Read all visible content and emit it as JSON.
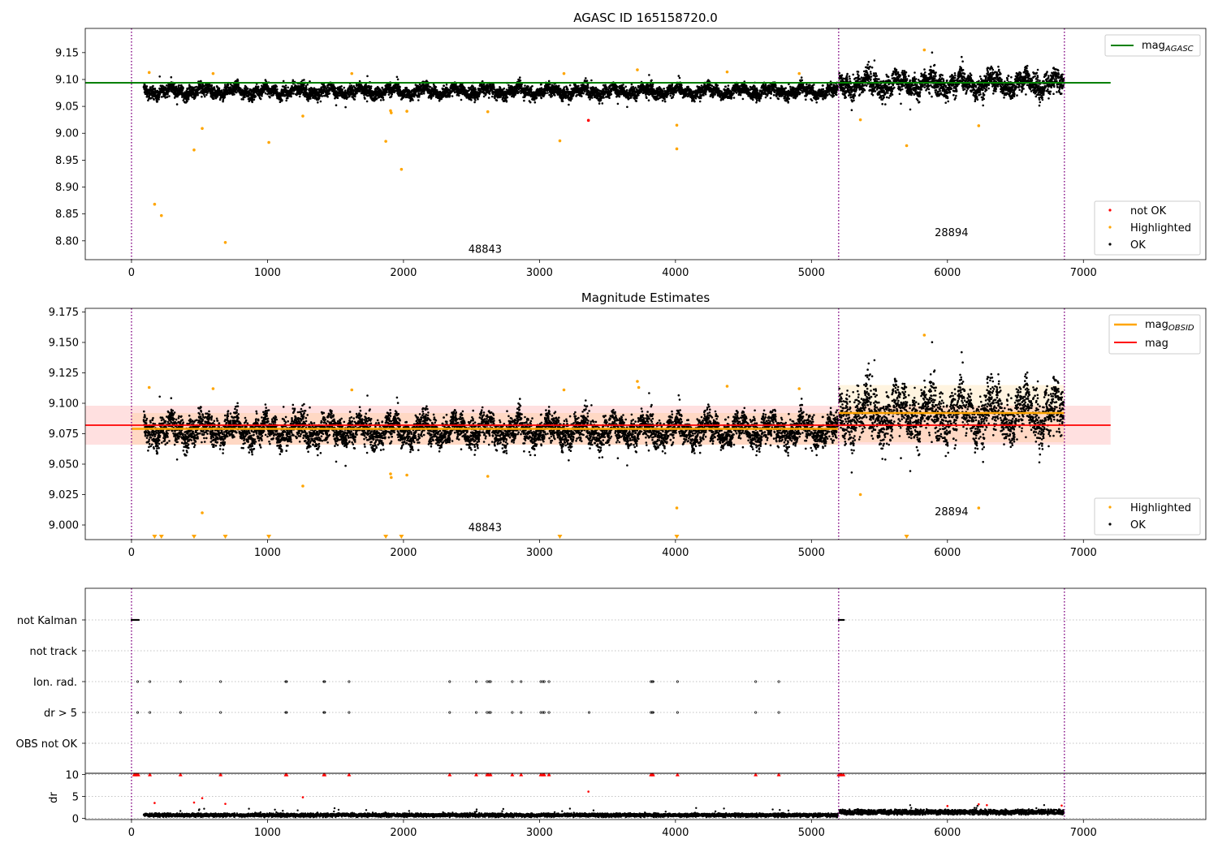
{
  "chart_data": [
    {
      "type": "scatter",
      "title": "AGASC ID 165158720.0",
      "xlabel": "",
      "ylabel": "",
      "xlim": [
        -340,
        7900
      ],
      "ylim": [
        8.765,
        9.195
      ],
      "xticks": [
        0,
        1000,
        2000,
        3000,
        4000,
        5000,
        6000,
        7000
      ],
      "yticks": [
        8.8,
        8.85,
        8.9,
        8.95,
        9.0,
        9.05,
        9.1,
        9.15
      ],
      "obsid_boundaries": [
        0,
        5200,
        6860
      ],
      "obsid_labels": [
        {
          "text": "48843",
          "x": 2600,
          "y": 8.778
        },
        {
          "text": "28894",
          "x": 6030,
          "y": 8.809
        }
      ],
      "reference_line": {
        "name": "mag_AGASC",
        "label": "mag",
        "subscript": "AGASC",
        "value": 9.094,
        "x_range": [
          -340,
          7200
        ],
        "color": "#008000"
      },
      "legend_top": {
        "position": "top-right",
        "entries": [
          {
            "label": "mag",
            "subscript": "AGASC",
            "color": "#008000",
            "kind": "line"
          }
        ]
      },
      "legend_bottom": {
        "position": "bottom-right",
        "entries": [
          {
            "label": "not OK",
            "color": "#ff0000",
            "kind": "dot"
          },
          {
            "label": "Highlighted",
            "color": "#ffa500",
            "kind": "dot"
          },
          {
            "label": "OK",
            "color": "#000000",
            "kind": "dot"
          }
        ]
      },
      "series": [
        {
          "name": "OK",
          "color": "#000000",
          "style": "dense-band",
          "segments": [
            {
              "x": [
                90,
                5195
              ],
              "base": 9.078,
              "amplitude": 0.016
            },
            {
              "x": [
                5205,
                6855
              ],
              "base": 9.092,
              "amplitude": 0.028
            }
          ]
        },
        {
          "name": "Highlighted",
          "color": "#ffa500",
          "points": [
            [
              130,
              9.113
            ],
            [
              170,
              8.868
            ],
            [
              220,
              8.847
            ],
            [
              460,
              8.969
            ],
            [
              520,
              9.009
            ],
            [
              600,
              9.111
            ],
            [
              690,
              8.797
            ],
            [
              1010,
              8.983
            ],
            [
              1260,
              9.032
            ],
            [
              1620,
              9.111
            ],
            [
              1870,
              8.985
            ],
            [
              1905,
              9.042
            ],
            [
              1910,
              9.038
            ],
            [
              1985,
              8.933
            ],
            [
              2025,
              9.041
            ],
            [
              2620,
              9.04
            ],
            [
              3150,
              8.986
            ],
            [
              3180,
              9.111
            ],
            [
              3720,
              9.118
            ],
            [
              4010,
              9.015
            ],
            [
              4010,
              8.971
            ],
            [
              4380,
              9.114
            ],
            [
              4910,
              9.111
            ],
            [
              5360,
              9.025
            ],
            [
              5700,
              8.977
            ],
            [
              5830,
              9.155
            ],
            [
              6230,
              9.014
            ]
          ]
        },
        {
          "name": "not OK",
          "color": "#ff0000",
          "points": [
            [
              3360,
              9.024
            ]
          ]
        }
      ]
    },
    {
      "type": "scatter",
      "title": "Magnitude Estimates",
      "xlabel": "",
      "ylabel": "",
      "xlim": [
        -340,
        7900
      ],
      "ylim": [
        8.988,
        9.178
      ],
      "xticks": [
        0,
        1000,
        2000,
        3000,
        4000,
        5000,
        6000,
        7000
      ],
      "yticks": [
        9.0,
        9.025,
        9.05,
        9.075,
        9.1,
        9.125,
        9.15,
        9.175
      ],
      "obsid_boundaries": [
        0,
        5200,
        6860
      ],
      "obsid_labels": [
        {
          "text": "48843",
          "x": 2600,
          "y": 8.995
        },
        {
          "text": "28894",
          "x": 6030,
          "y": 9.008
        }
      ],
      "mag_line": {
        "name": "mag",
        "value": 9.082,
        "band": [
          9.066,
          9.098
        ],
        "x_range": [
          -340,
          7200
        ],
        "color": "#ff0000"
      },
      "obsid_mags": [
        {
          "x_range": [
            0,
            5200
          ],
          "value": 9.079,
          "band": [
            9.066,
            9.092
          ]
        },
        {
          "x_range": [
            5200,
            6860
          ],
          "value": 9.092,
          "band": [
            9.068,
            9.115
          ]
        }
      ],
      "legend_top": {
        "position": "top-right",
        "entries": [
          {
            "label": "mag",
            "subscript": "OBSID",
            "color": "#ffa500",
            "kind": "line"
          },
          {
            "label": "mag",
            "subscript": "",
            "color": "#ff0000",
            "kind": "line"
          }
        ]
      },
      "legend_bottom": {
        "position": "bottom-right",
        "entries": [
          {
            "label": "Highlighted",
            "color": "#ffa500",
            "kind": "dot"
          },
          {
            "label": "OK",
            "color": "#000000",
            "kind": "dot"
          }
        ]
      },
      "series": [
        {
          "name": "OK",
          "color": "#000000",
          "style": "dense-band",
          "segments": [
            {
              "x": [
                90,
                5195
              ],
              "base": 9.078,
              "amplitude": 0.016
            },
            {
              "x": [
                5205,
                6855
              ],
              "base": 9.092,
              "amplitude": 0.028
            }
          ]
        },
        {
          "name": "Highlighted",
          "color": "#ffa500",
          "points": [
            [
              130,
              9.113
            ],
            [
              520,
              9.01
            ],
            [
              600,
              9.112
            ],
            [
              1260,
              9.032
            ],
            [
              1620,
              9.111
            ],
            [
              1905,
              9.042
            ],
            [
              1910,
              9.039
            ],
            [
              2025,
              9.041
            ],
            [
              2620,
              9.04
            ],
            [
              3180,
              9.111
            ],
            [
              3720,
              9.118
            ],
            [
              3730,
              9.113
            ],
            [
              4010,
              9.014
            ],
            [
              4380,
              9.114
            ],
            [
              4910,
              9.112
            ],
            [
              5360,
              9.025
            ],
            [
              5830,
              9.156
            ],
            [
              6230,
              9.014
            ]
          ]
        },
        {
          "name": "Highlighted (below axis)",
          "color": "#ffa500",
          "marker": "triangle-down",
          "points": [
            [
              170,
              8.99
            ],
            [
              220,
              8.99
            ],
            [
              460,
              8.99
            ],
            [
              690,
              8.99
            ],
            [
              1010,
              8.99
            ],
            [
              1870,
              8.99
            ],
            [
              1985,
              8.99
            ],
            [
              3150,
              8.99
            ],
            [
              4010,
              8.99
            ],
            [
              5700,
              8.99
            ]
          ]
        }
      ]
    },
    {
      "type": "scatter",
      "title": "",
      "xlabel": "",
      "ylabel": "",
      "xlim": [
        -340,
        7900
      ],
      "xticks": [
        0,
        1000,
        2000,
        3000,
        4000,
        5000,
        6000,
        7000
      ],
      "obsid_boundaries": [
        0,
        5200,
        6860
      ],
      "flag_rows": [
        "not Kalman",
        "not track",
        "Ion. rad.",
        "dr > 5",
        "OBS not OK"
      ],
      "flags": {
        "not Kalman": [
          [
            0,
            55
          ],
          [
            5200,
            5240
          ]
        ],
        "not track": [],
        "Ion. rad.": [
          45,
          135,
          360,
          655,
          1135,
          1140,
          1415,
          1420,
          1600,
          2340,
          2535,
          2615,
          2630,
          2640,
          2800,
          2865,
          3010,
          3025,
          3035,
          3070,
          3820,
          3830,
          3835,
          4015,
          4590,
          4760
        ],
        "dr > 5": [
          45,
          135,
          360,
          655,
          1135,
          1140,
          1415,
          1420,
          1600,
          2340,
          2535,
          2615,
          2630,
          2640,
          2800,
          2865,
          3010,
          3025,
          3035,
          3070,
          3365,
          3820,
          3830,
          3835,
          4015,
          4590,
          4760
        ],
        "OBS not OK": []
      },
      "dr_panel": {
        "ylabel": "dr",
        "ylim": [
          -0.3,
          10.3
        ],
        "yticks": [
          0,
          5,
          10
        ],
        "clipped_value": 10,
        "clipped_x": [
          20,
          30,
          40,
          50,
          135,
          360,
          655,
          1135,
          1140,
          1415,
          1420,
          1600,
          2340,
          2535,
          2615,
          2625,
          2640,
          2800,
          2865,
          3010,
          3025,
          3035,
          3070,
          3820,
          3830,
          3835,
          4015,
          4590,
          4760,
          5200,
          5210,
          5220,
          5235
        ],
        "red_points": [
          [
            170,
            3.5
          ],
          [
            460,
            3.6
          ],
          [
            520,
            4.6
          ],
          [
            690,
            3.3
          ],
          [
            1260,
            4.8
          ],
          [
            3360,
            6.1
          ],
          [
            6000,
            2.8
          ],
          [
            6230,
            3.2
          ],
          [
            6290,
            3.0
          ],
          [
            6840,
            2.9
          ]
        ],
        "segments": [
          {
            "x": [
              90,
              5195
            ],
            "base": 0.7,
            "amplitude": 0.5
          },
          {
            "x": [
              5205,
              6855
            ],
            "base": 1.4,
            "amplitude": 0.7
          }
        ]
      }
    }
  ]
}
